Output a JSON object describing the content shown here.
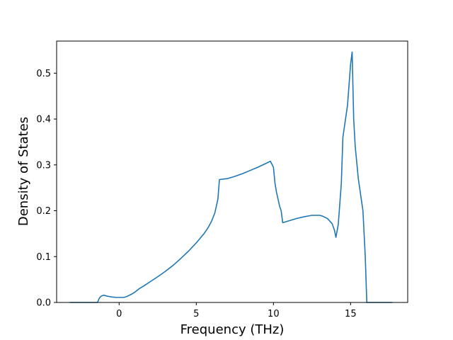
{
  "chart_data": {
    "type": "line",
    "title": "",
    "xlabel": "Frequency (THz)",
    "ylabel": "Density of States",
    "xlim": [
      -4.05,
      18.7
    ],
    "ylim": [
      0,
      0.57
    ],
    "xticks": [
      0,
      5,
      10,
      15
    ],
    "yticks": [
      0.0,
      0.1,
      0.2,
      0.3,
      0.4,
      0.5
    ],
    "ytick_labels": [
      "0.0",
      "0.1",
      "0.2",
      "0.3",
      "0.4",
      "0.5"
    ],
    "grid": false,
    "legend": "none",
    "series": [
      {
        "color": "#1f77b4",
        "x": [
          -3.2,
          -2.0,
          -1.5,
          -1.4,
          -1.3,
          -1.2,
          -1.0,
          -0.8,
          -0.5,
          -0.2,
          0.0,
          0.3,
          0.5,
          0.8,
          1.0,
          1.3,
          1.6,
          2.0,
          2.5,
          3.0,
          3.5,
          4.0,
          4.5,
          5.0,
          5.5,
          5.8,
          6.0,
          6.2,
          6.3,
          6.4,
          6.5,
          7.0,
          7.5,
          8.0,
          8.5,
          9.0,
          9.5,
          9.8,
          10.0,
          10.1,
          10.2,
          10.4,
          10.5,
          10.6,
          11.0,
          11.5,
          12.0,
          12.5,
          13.0,
          13.2,
          13.5,
          13.8,
          13.95,
          14.05,
          14.2,
          14.4,
          14.5,
          14.8,
          15.0,
          15.1,
          15.2,
          15.3,
          15.5,
          15.8,
          15.95,
          16.05,
          16.2,
          17.0,
          17.7
        ],
        "y": [
          0.0,
          0.0,
          0.0,
          0.0,
          0.008,
          0.013,
          0.016,
          0.014,
          0.012,
          0.011,
          0.011,
          0.011,
          0.013,
          0.018,
          0.022,
          0.03,
          0.036,
          0.045,
          0.056,
          0.068,
          0.081,
          0.096,
          0.112,
          0.13,
          0.15,
          0.165,
          0.178,
          0.195,
          0.21,
          0.225,
          0.268,
          0.27,
          0.275,
          0.281,
          0.288,
          0.295,
          0.303,
          0.308,
          0.295,
          0.26,
          0.24,
          0.21,
          0.2,
          0.174,
          0.178,
          0.183,
          0.187,
          0.19,
          0.19,
          0.188,
          0.183,
          0.172,
          0.158,
          0.142,
          0.17,
          0.26,
          0.36,
          0.43,
          0.52,
          0.546,
          0.4,
          0.34,
          0.27,
          0.2,
          0.1,
          0.0,
          0.0,
          0.0,
          0.0
        ]
      }
    ]
  }
}
